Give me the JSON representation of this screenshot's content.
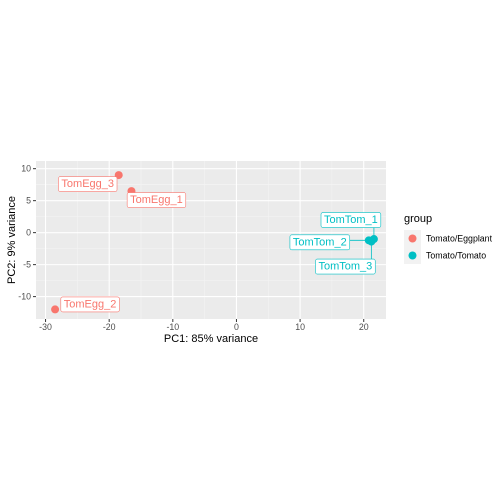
{
  "chart_data": {
    "type": "scatter",
    "xlabel": "PC1: 85% variance",
    "ylabel": "PC2: 9% variance",
    "xlim": [
      -31.5,
      23.5
    ],
    "ylim": [
      -13.5,
      11.2
    ],
    "x_ticks": [
      -30,
      -20,
      -10,
      0,
      10,
      20
    ],
    "y_ticks": [
      -10,
      -5,
      0,
      5,
      10
    ],
    "grid": true,
    "legend": {
      "title": "group",
      "position": "right",
      "entries": [
        {
          "name": "Tomato/Eggplant",
          "color": "#F8766D"
        },
        {
          "name": "Tomato/Tomato",
          "color": "#00BFC4"
        }
      ]
    },
    "series": [
      {
        "name": "Tomato/Eggplant",
        "color": "#F8766D",
        "points": [
          {
            "label": "TomEgg_3",
            "x": -18.5,
            "y": 9.0
          },
          {
            "label": "TomEgg_1",
            "x": -16.5,
            "y": 6.5
          },
          {
            "label": "TomEgg_2",
            "x": -28.5,
            "y": -12.0
          }
        ]
      },
      {
        "name": "Tomato/Tomato",
        "color": "#00BFC4",
        "points": [
          {
            "label": "TomTom_1",
            "x": 21.6,
            "y": -1.0
          },
          {
            "label": "TomTom_2",
            "x": 20.8,
            "y": -1.2
          },
          {
            "label": "TomTom_3",
            "x": 21.2,
            "y": -1.4
          }
        ]
      }
    ]
  }
}
